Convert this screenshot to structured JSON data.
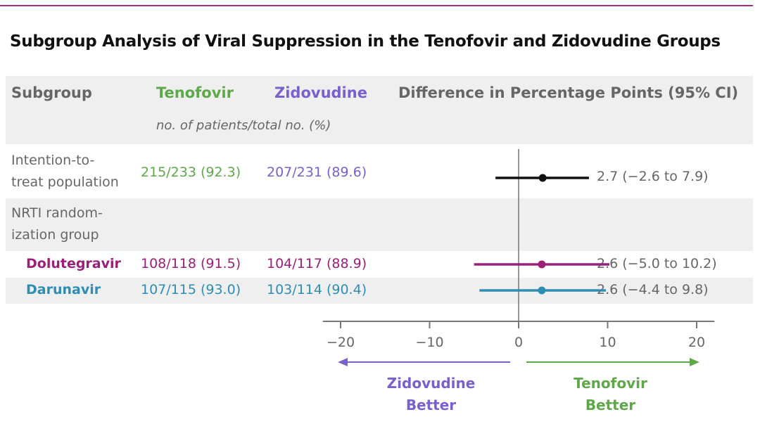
{
  "chart_data": {
    "type": "forest",
    "title": "Subgroup Analysis of Viral Suppression in the Tenofovir and Zidovudine Groups",
    "columns": {
      "subgroup": "Subgroup",
      "tenofovir": "Tenofovir",
      "zidovudine": "Zidovudine",
      "subheader": "no. of patients/total no. (%)",
      "difference": "Difference in Percentage Points (95% CI)"
    },
    "rows": [
      {
        "label_lines": [
          "Intention-to-",
          "treat population"
        ],
        "tenofovir": "215/233 (92.3)",
        "zidovudine": "207/231 (89.6)",
        "diff_text": "2.7 (−2.6 to 7.9)",
        "estimate": 2.7,
        "ci": [
          -2.6,
          7.9
        ],
        "color": "#111111"
      },
      {
        "label_lines": [
          "NRTI random-",
          "ization group"
        ],
        "tenofovir": "",
        "zidovudine": "",
        "diff_text": "",
        "estimate": null,
        "ci": null,
        "color": "#666666"
      },
      {
        "label_lines": [
          "Dolutegravir"
        ],
        "tenofovir": "108/118 (91.5)",
        "zidovudine": "104/117 (88.9)",
        "diff_text": "2.6 (−5.0 to 10.2)",
        "estimate": 2.6,
        "ci": [
          -5.0,
          10.2
        ],
        "color": "#9b1f78"
      },
      {
        "label_lines": [
          "Darunavir"
        ],
        "tenofovir": "107/115 (93.0)",
        "zidovudine": "103/114 (90.4)",
        "diff_text": "2.6 (−4.4 to 9.8)",
        "estimate": 2.6,
        "ci": [
          -4.4,
          9.8
        ],
        "color": "#2e8db3"
      }
    ],
    "xlim": [
      -22,
      22
    ],
    "xticks": [
      -20,
      -10,
      0,
      10,
      20
    ],
    "xtick_labels": [
      "−20",
      "−10",
      "0",
      "10",
      "20"
    ],
    "arrows": {
      "left": {
        "lines": [
          "Zidovudine",
          "Better"
        ],
        "color": "#7a5fcf"
      },
      "right": {
        "lines": [
          "Tenofovir",
          "Better"
        ],
        "color": "#5fa84a"
      }
    }
  },
  "colors": {
    "tenofovir": "#5fa84a",
    "zidovudine": "#7a5fcf",
    "accent_line": "#a0307f"
  }
}
